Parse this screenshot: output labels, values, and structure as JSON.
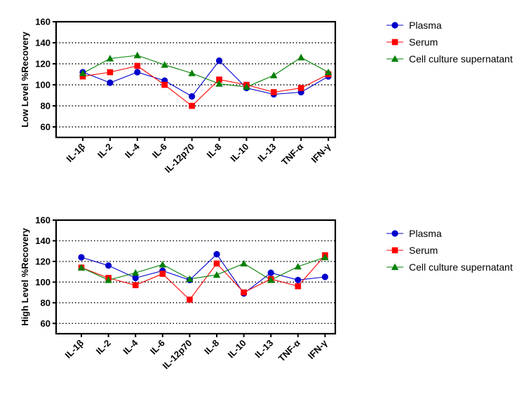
{
  "chart_data": [
    {
      "type": "line",
      "title": "",
      "xlabel": "",
      "ylabel": "Low Level %Recovery",
      "ylim": [
        50,
        160
      ],
      "yticks": [
        60,
        80,
        100,
        120,
        140,
        160
      ],
      "grid": "horizontal-dotted",
      "legend": "right",
      "categories": [
        "IL-1β",
        "IL-2",
        "IL-4",
        "IL-6",
        "IL-12p70",
        "IL-8",
        "IL-10",
        "IL-13",
        "TNF-α",
        "IFN-γ"
      ],
      "series": [
        {
          "name": "Plasma",
          "marker": "circle",
          "color": "#0000cc",
          "values": [
            112,
            102,
            112,
            104,
            89,
            123,
            97,
            91,
            93,
            108
          ]
        },
        {
          "name": "Serum",
          "marker": "square",
          "color": "#ff0000",
          "values": [
            108,
            112,
            118,
            100,
            80,
            105,
            100,
            93,
            97,
            110
          ]
        },
        {
          "name": "Cell culture supernatant",
          "marker": "triangle",
          "color": "#008000",
          "values": [
            111,
            125,
            128,
            119,
            111,
            101,
            98,
            109,
            126,
            112
          ]
        }
      ]
    },
    {
      "type": "line",
      "title": "",
      "xlabel": "",
      "ylabel": "High Level %Recovery",
      "ylim": [
        50,
        160
      ],
      "yticks": [
        60,
        80,
        100,
        120,
        140,
        160
      ],
      "grid": "horizontal-dotted",
      "legend": "right",
      "categories": [
        "IL-1β",
        "IL-2",
        "IL-4",
        "IL-6",
        "IL-12p70",
        "IL-8",
        "IL-10",
        "IL-13",
        "TNF-α",
        "IFN-γ"
      ],
      "series": [
        {
          "name": "Plasma",
          "marker": "circle",
          "color": "#0000cc",
          "values": [
            124,
            116,
            104,
            111,
            102,
            127,
            89,
            109,
            102,
            105
          ]
        },
        {
          "name": "Serum",
          "marker": "square",
          "color": "#ff0000",
          "values": [
            114,
            104,
            97,
            108,
            83,
            118,
            90,
            103,
            96,
            126
          ]
        },
        {
          "name": "Cell culture supernatant",
          "marker": "triangle",
          "color": "#008000",
          "values": [
            114,
            102,
            109,
            117,
            103,
            107,
            118,
            102,
            115,
            124
          ]
        }
      ]
    }
  ]
}
